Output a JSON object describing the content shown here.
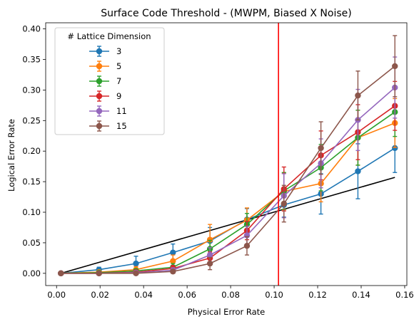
{
  "chart_data": {
    "type": "line",
    "title": "Surface Code Threshold - (MWPM, Biased X Noise)",
    "xlabel": "Physical Error Rate",
    "ylabel": "Logical Error Rate",
    "xlim": [
      -0.005,
      0.161
    ],
    "ylim": [
      -0.02,
      0.41
    ],
    "xticks": [
      0.0,
      0.02,
      0.04,
      0.06,
      0.08,
      0.1,
      0.12,
      0.14,
      0.16
    ],
    "xtick_labels": [
      "0.00",
      "0.02",
      "0.04",
      "0.06",
      "0.08",
      "0.10",
      "0.12",
      "0.14",
      "0.16"
    ],
    "yticks": [
      0.0,
      0.05,
      0.1,
      0.15,
      0.2,
      0.25,
      0.3,
      0.35,
      0.4
    ],
    "ytick_labels": [
      "0.00",
      "0.05",
      "0.10",
      "0.15",
      "0.20",
      "0.25",
      "0.30",
      "0.35",
      "0.40"
    ],
    "legend_title": "# Lattice Dimension",
    "legend_position": "top-left",
    "x": [
      0.002,
      0.0195,
      0.0365,
      0.0535,
      0.0705,
      0.0875,
      0.1045,
      0.1215,
      0.1385,
      0.1555
    ],
    "series": [
      {
        "name": "3",
        "color": "#1f77b4",
        "values": [
          0.0,
          0.006,
          0.016,
          0.034,
          0.053,
          0.088,
          0.112,
          0.13,
          0.167,
          0.205
        ],
        "errors": [
          0.0,
          0.004,
          0.012,
          0.014,
          0.022,
          0.018,
          0.02,
          0.033,
          0.045,
          0.04
        ]
      },
      {
        "name": "5",
        "color": "#ff7f0e",
        "values": [
          0.0,
          0.002,
          0.006,
          0.02,
          0.055,
          0.087,
          0.134,
          0.147,
          0.222,
          0.246
        ],
        "errors": [
          0.0,
          0.002,
          0.005,
          0.01,
          0.025,
          0.02,
          0.03,
          0.03,
          0.045,
          0.04
        ]
      },
      {
        "name": "7",
        "color": "#2ca02c",
        "values": [
          0.0,
          0.001,
          0.004,
          0.01,
          0.04,
          0.08,
          0.135,
          0.173,
          0.222,
          0.264
        ],
        "errors": [
          0.0,
          0.001,
          0.003,
          0.006,
          0.014,
          0.018,
          0.03,
          0.038,
          0.045,
          0.04
        ]
      },
      {
        "name": "9",
        "color": "#d62728",
        "values": [
          0.0,
          0.0,
          0.002,
          0.008,
          0.025,
          0.07,
          0.138,
          0.193,
          0.231,
          0.274
        ],
        "errors": [
          0.0,
          0.001,
          0.002,
          0.005,
          0.01,
          0.015,
          0.036,
          0.04,
          0.045,
          0.04
        ]
      },
      {
        "name": "11",
        "color": "#9467bd",
        "values": [
          0.0,
          0.0,
          0.001,
          0.005,
          0.03,
          0.062,
          0.127,
          0.18,
          0.251,
          0.304
        ],
        "errors": [
          0.0,
          0.001,
          0.002,
          0.004,
          0.012,
          0.015,
          0.036,
          0.04,
          0.05,
          0.05
        ]
      },
      {
        "name": "15",
        "color": "#8c564b",
        "values": [
          0.0,
          0.0,
          0.0,
          0.003,
          0.016,
          0.045,
          0.114,
          0.205,
          0.291,
          0.339
        ],
        "errors": [
          0.0,
          0.001,
          0.001,
          0.003,
          0.01,
          0.015,
          0.03,
          0.043,
          0.04,
          0.05
        ]
      }
    ],
    "reference_line": {
      "color": "#000000",
      "x": [
        0.002,
        0.1555
      ],
      "y": [
        0.0,
        0.157
      ]
    },
    "threshold_line": {
      "color": "#ff0000",
      "x": 0.102
    }
  }
}
